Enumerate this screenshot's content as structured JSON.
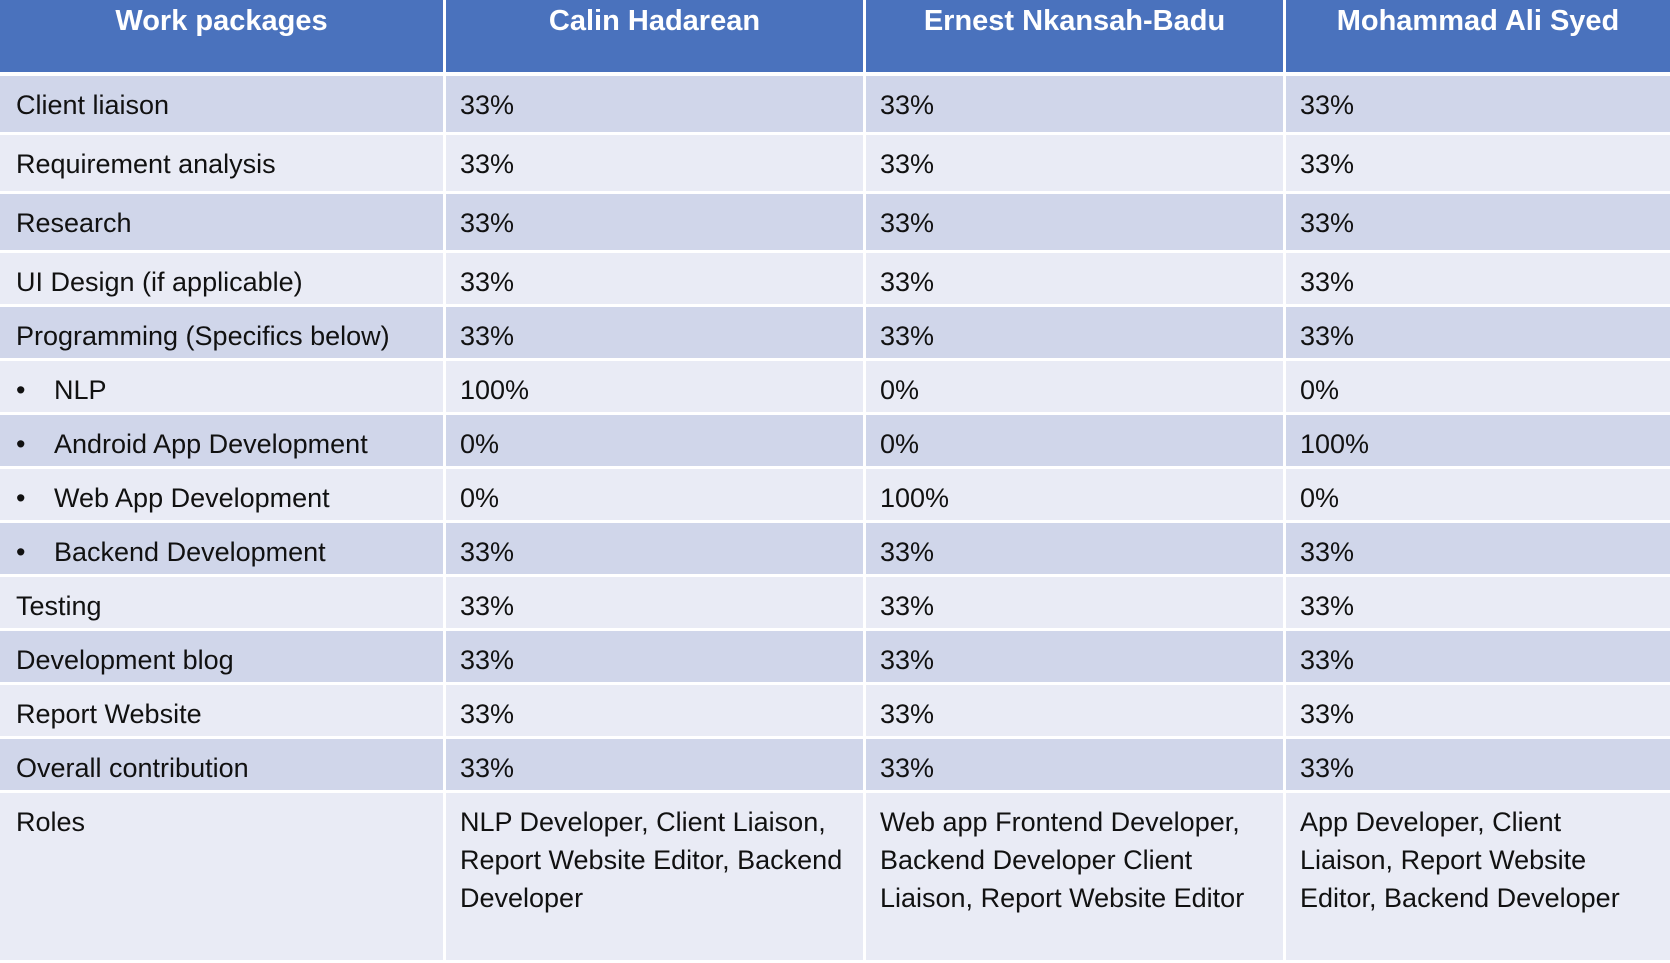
{
  "headers": [
    "Work packages",
    "Calin Hadarean",
    "Ernest Nkansah-Badu",
    "Mohammad Ali Syed"
  ],
  "rows": [
    {
      "label": "Client liaison",
      "bullet": false,
      "values": [
        "33%",
        "33%",
        "33%"
      ]
    },
    {
      "label": "Requirement analysis",
      "bullet": false,
      "values": [
        "33%",
        "33%",
        "33%"
      ]
    },
    {
      "label": "Research",
      "bullet": false,
      "values": [
        "33%",
        "33%",
        "33%"
      ]
    },
    {
      "label": "UI Design (if applicable)",
      "bullet": false,
      "values": [
        "33%",
        "33%",
        "33%"
      ]
    },
    {
      "label": "Programming (Specifics below)",
      "bullet": false,
      "values": [
        "33%",
        "33%",
        "33%"
      ]
    },
    {
      "label": "NLP",
      "bullet": true,
      "values": [
        "100%",
        "0%",
        "0%"
      ]
    },
    {
      "label": "Android App Development",
      "bullet": true,
      "values": [
        "0%",
        "0%",
        "100%"
      ]
    },
    {
      "label": "Web App Development",
      "bullet": true,
      "values": [
        "0%",
        "100%",
        "0%"
      ]
    },
    {
      "label": "Backend Development",
      "bullet": true,
      "values": [
        "33%",
        "33%",
        "33%"
      ]
    },
    {
      "label": "Testing",
      "bullet": false,
      "values": [
        "33%",
        "33%",
        "33%"
      ]
    },
    {
      "label": "Development blog",
      "bullet": false,
      "values": [
        "33%",
        "33%",
        "33%"
      ]
    },
    {
      "label": "Report Website",
      "bullet": false,
      "values": [
        "33%",
        "33%",
        "33%"
      ]
    },
    {
      "label": "Overall contribution",
      "bullet": false,
      "values": [
        "33%",
        "33%",
        "33%"
      ]
    },
    {
      "label": "Roles",
      "bullet": false,
      "values": [
        "NLP Developer, Client Liaison, Report Website Editor, Backend Developer",
        "Web app Frontend Developer, Backend Developer Client Liaison, Report Website Editor",
        "App Developer, Client Liaison, Report Website Editor, Backend Developer"
      ]
    }
  ],
  "bullet_glyph": "•",
  "colors": {
    "header": "#4a72bd",
    "row_dark": "#d0d6ea",
    "row_light": "#e9ebf5"
  }
}
